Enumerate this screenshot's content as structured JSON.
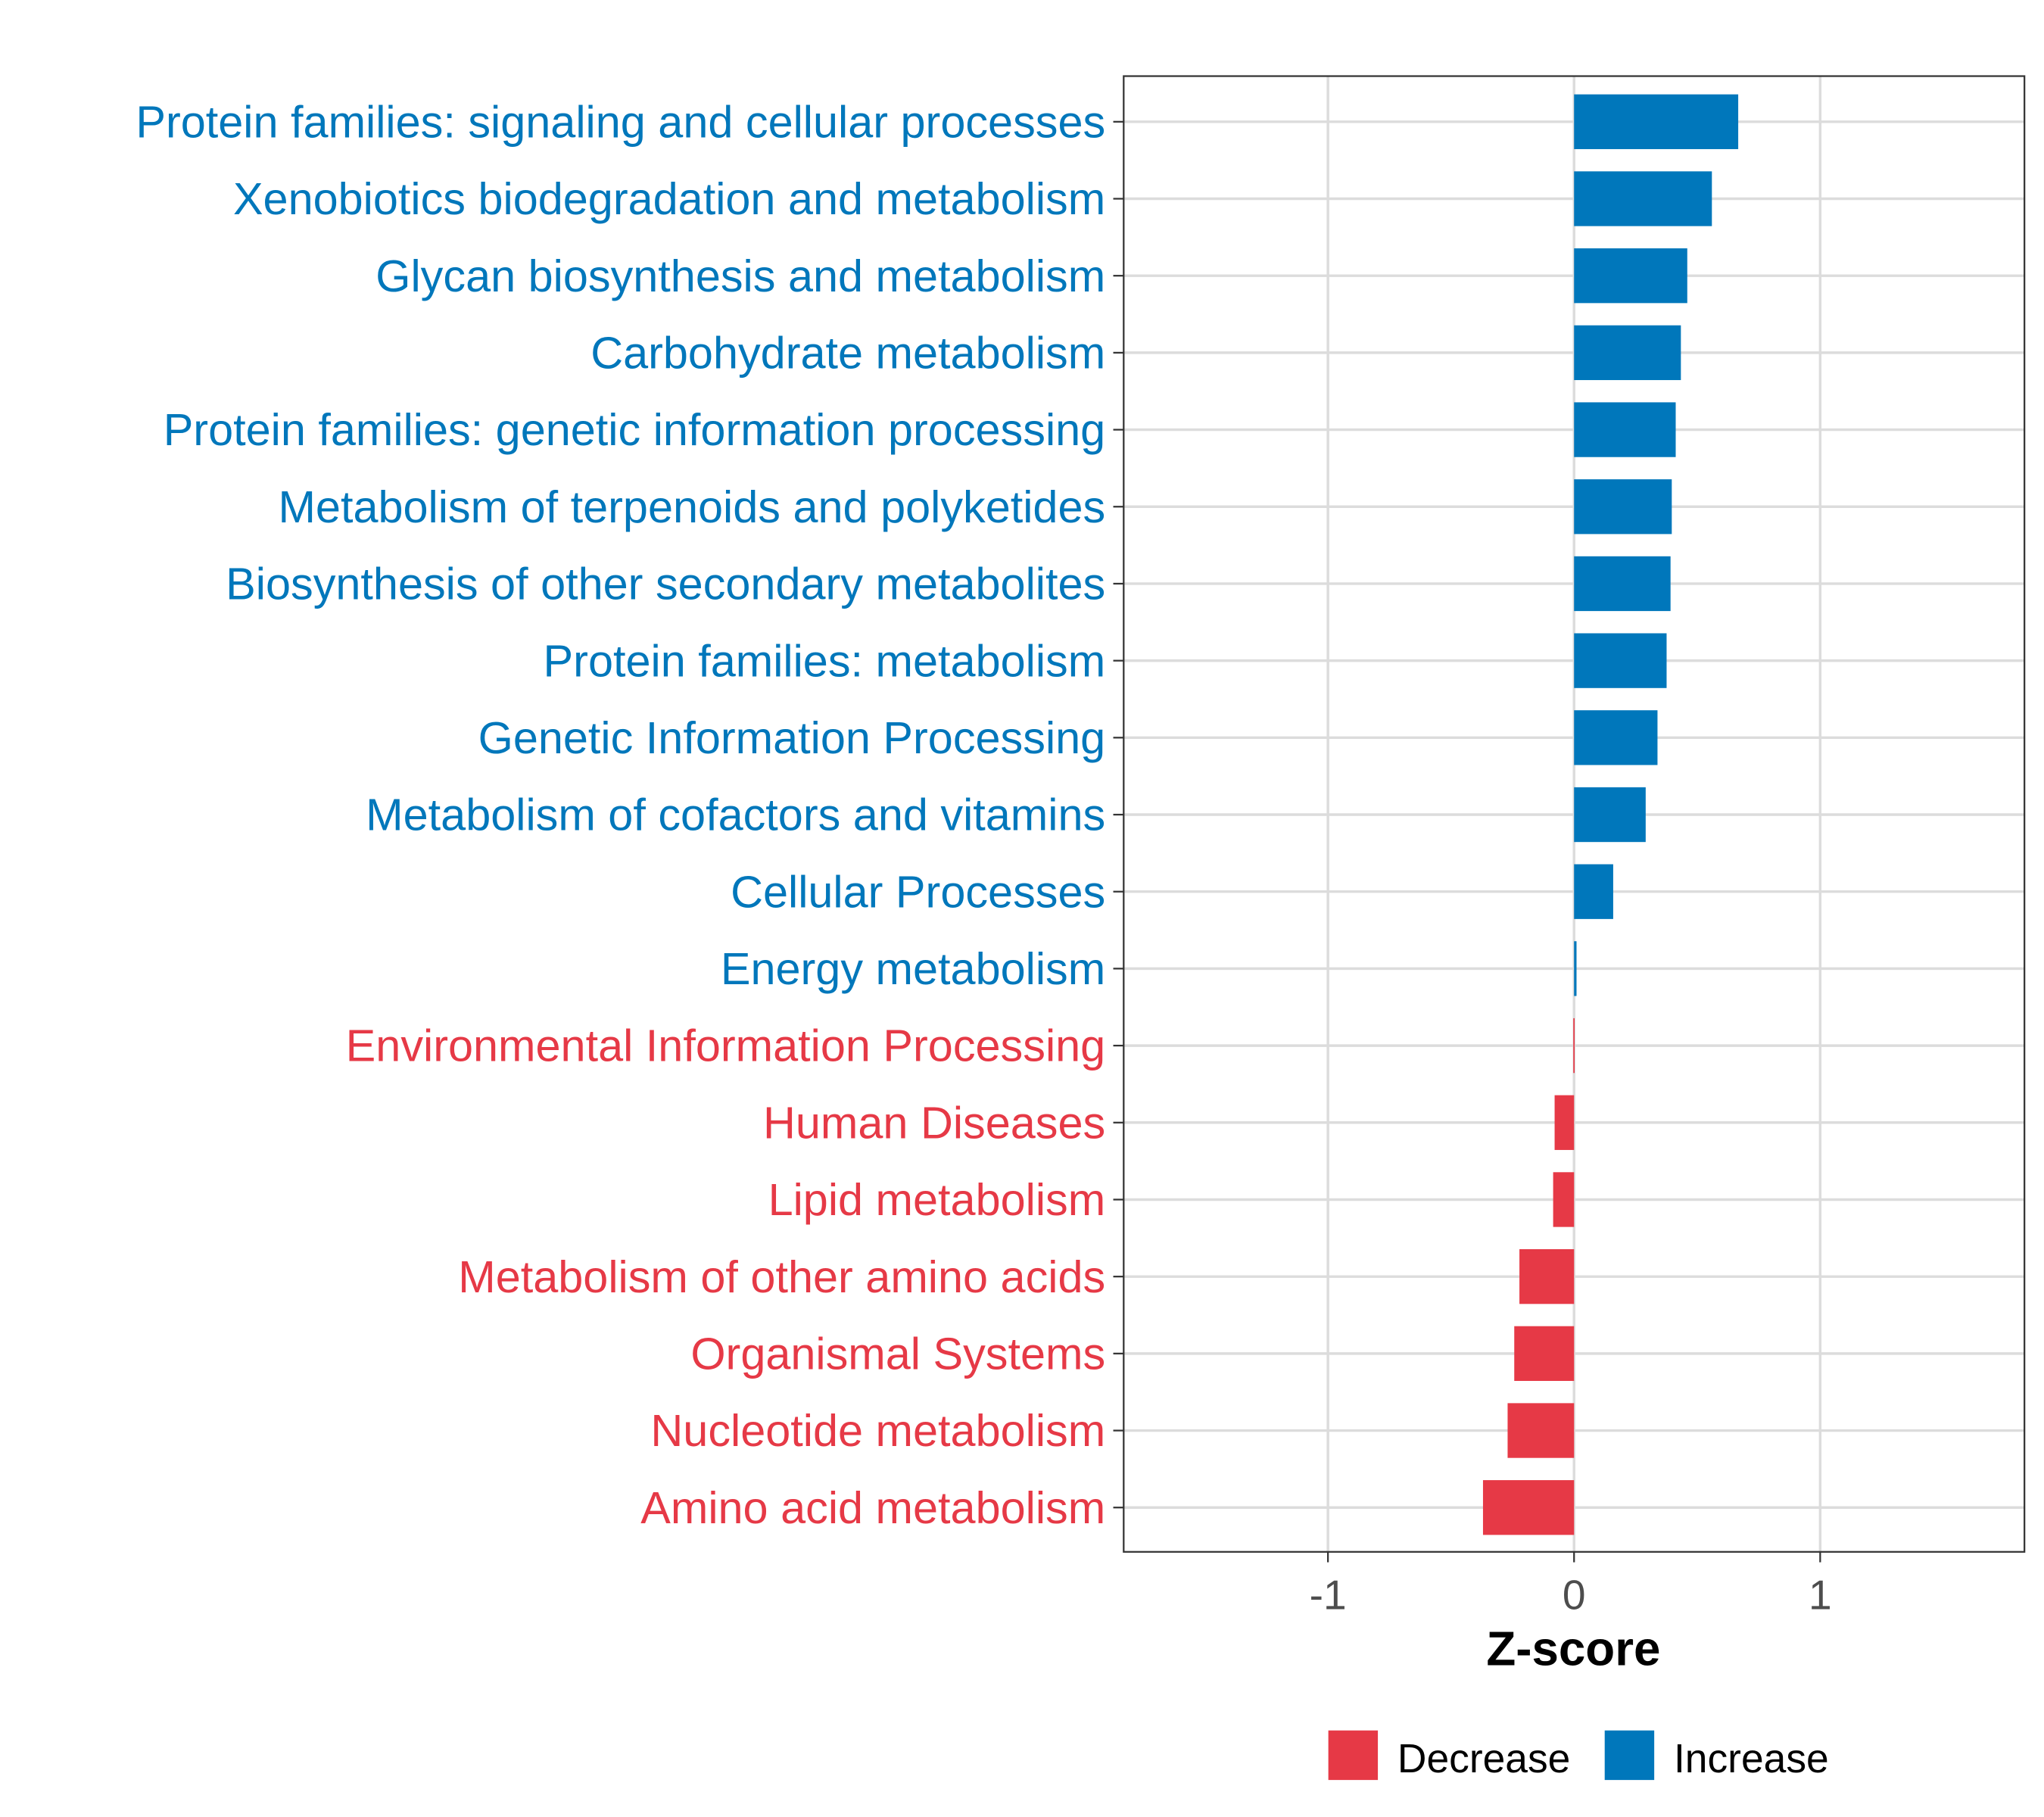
{
  "chart_data": {
    "type": "bar",
    "orientation": "horizontal",
    "title": "",
    "xlabel": "Z-score",
    "ylabel": "",
    "xlim": [
      -1.83,
      1.83
    ],
    "xticks": [
      -1,
      0,
      1
    ],
    "xtick_labels": [
      "-1",
      "0",
      "1"
    ],
    "grid": true,
    "legend": {
      "placement": "bottom",
      "entries": [
        {
          "label": "Decrease",
          "color": "#E63946"
        },
        {
          "label": "Increase",
          "color": "#0077BB"
        }
      ]
    },
    "categories": [
      "Protein families: signaling and cellular processes",
      "Xenobiotics biodegradation and metabolism",
      "Glycan biosynthesis and metabolism",
      "Carbohydrate metabolism",
      "Protein families: genetic information processing",
      "Metabolism of terpenoids and polyketides",
      "Biosynthesis of other secondary metabolites",
      "Protein families: metabolism",
      "Genetic Information Processing",
      "Metabolism of cofactors and vitamins",
      "Cellular Processes",
      "Energy metabolism",
      "Environmental Information Processing",
      "Human Diseases",
      "Lipid metabolism",
      "Metabolism of other amino acids",
      "Organismal Systems",
      "Nucleotide metabolism",
      "Amino acid metabolism"
    ],
    "values": [
      0.667,
      0.56,
      0.46,
      0.434,
      0.413,
      0.397,
      0.392,
      0.376,
      0.339,
      0.291,
      0.159,
      0.01,
      -0.003,
      -0.079,
      -0.085,
      -0.222,
      -0.243,
      -0.27,
      -0.37
    ],
    "groups": [
      "Increase",
      "Increase",
      "Increase",
      "Increase",
      "Increase",
      "Increase",
      "Increase",
      "Increase",
      "Increase",
      "Increase",
      "Increase",
      "Increase",
      "Decrease",
      "Decrease",
      "Decrease",
      "Decrease",
      "Decrease",
      "Decrease",
      "Decrease"
    ]
  }
}
